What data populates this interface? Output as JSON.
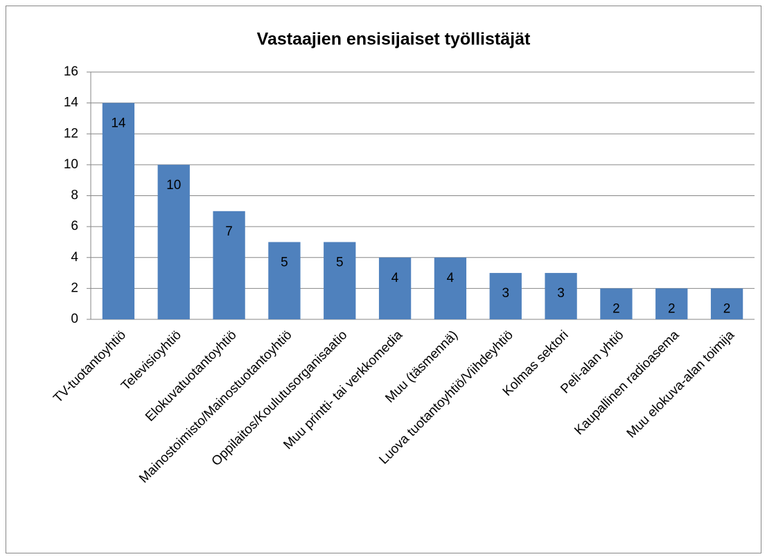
{
  "chart_data": {
    "type": "bar",
    "title": "Vastaajien ensisijaiset työllistäjät",
    "categories": [
      "TV-tuotantoyhtiö",
      "Televisioyhtiö",
      "Elokuvatuotantoyhtiö",
      "Mainostoimisto/Mainostuotantoyhtiö",
      "Oppilaitos/Koulutusorganisaatio",
      "Muu printti- tai verkkomedia",
      "Muu (täsmennä)",
      "Luova tuotantoyhtiö/Viihdeyhtiö",
      "Kolmas sektori",
      "Peli-alan yhtiö",
      "Kaupallinen radioasema",
      "Muu elokuva-alan toimija"
    ],
    "values": [
      14,
      10,
      7,
      5,
      5,
      4,
      4,
      3,
      3,
      2,
      2,
      2
    ],
    "color": "#4f81bd",
    "ylim": [
      0,
      16
    ],
    "yticks": [
      0,
      2,
      4,
      6,
      8,
      10,
      12,
      14,
      16
    ],
    "grid": true
  }
}
